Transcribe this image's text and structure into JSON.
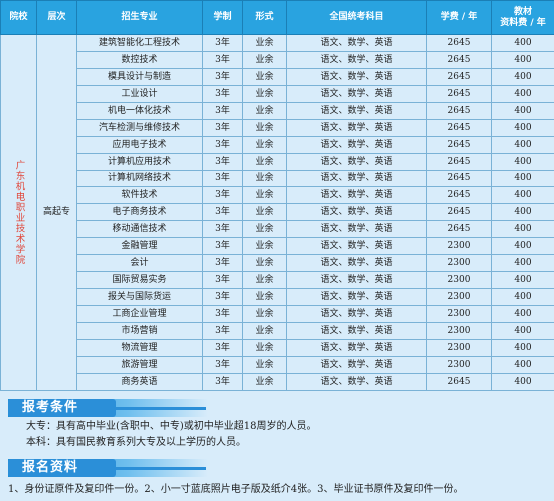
{
  "headers": {
    "school": "院校",
    "level": "层次",
    "major": "招生专业",
    "duration": "学制",
    "mode": "形式",
    "subjects": "全国统考科目",
    "tuition": "学费 / 年",
    "material_line1": "教材",
    "material_line2": "资料费 / 年"
  },
  "school": "广东机电职业技术学院",
  "level": "高起专",
  "rows": [
    {
      "major": "建筑智能化工程技术",
      "duration": "3年",
      "mode": "业余",
      "subjects": "语文、数学、英语",
      "tuition": "2645",
      "material": "400"
    },
    {
      "major": "数控技术",
      "duration": "3年",
      "mode": "业余",
      "subjects": "语文、数学、英语",
      "tuition": "2645",
      "material": "400"
    },
    {
      "major": "模具设计与制造",
      "duration": "3年",
      "mode": "业余",
      "subjects": "语文、数学、英语",
      "tuition": "2645",
      "material": "400"
    },
    {
      "major": "工业设计",
      "duration": "3年",
      "mode": "业余",
      "subjects": "语文、数学、英语",
      "tuition": "2645",
      "material": "400"
    },
    {
      "major": "机电一体化技术",
      "duration": "3年",
      "mode": "业余",
      "subjects": "语文、数学、英语",
      "tuition": "2645",
      "material": "400"
    },
    {
      "major": "汽车检测与维修技术",
      "duration": "3年",
      "mode": "业余",
      "subjects": "语文、数学、英语",
      "tuition": "2645",
      "material": "400"
    },
    {
      "major": "应用电子技术",
      "duration": "3年",
      "mode": "业余",
      "subjects": "语文、数学、英语",
      "tuition": "2645",
      "material": "400"
    },
    {
      "major": "计算机应用技术",
      "duration": "3年",
      "mode": "业余",
      "subjects": "语文、数学、英语",
      "tuition": "2645",
      "material": "400"
    },
    {
      "major": "计算机网络技术",
      "duration": "3年",
      "mode": "业余",
      "subjects": "语文、数学、英语",
      "tuition": "2645",
      "material": "400"
    },
    {
      "major": "软件技术",
      "duration": "3年",
      "mode": "业余",
      "subjects": "语文、数学、英语",
      "tuition": "2645",
      "material": "400"
    },
    {
      "major": "电子商务技术",
      "duration": "3年",
      "mode": "业余",
      "subjects": "语文、数学、英语",
      "tuition": "2645",
      "material": "400"
    },
    {
      "major": "移动通信技术",
      "duration": "3年",
      "mode": "业余",
      "subjects": "语文、数学、英语",
      "tuition": "2645",
      "material": "400"
    },
    {
      "major": "金融管理",
      "duration": "3年",
      "mode": "业余",
      "subjects": "语文、数学、英语",
      "tuition": "2300",
      "material": "400"
    },
    {
      "major": "会计",
      "duration": "3年",
      "mode": "业余",
      "subjects": "语文、数学、英语",
      "tuition": "2300",
      "material": "400"
    },
    {
      "major": "国际贸易实务",
      "duration": "3年",
      "mode": "业余",
      "subjects": "语文、数学、英语",
      "tuition": "2300",
      "material": "400"
    },
    {
      "major": "报关与国际货运",
      "duration": "3年",
      "mode": "业余",
      "subjects": "语文、数学、英语",
      "tuition": "2300",
      "material": "400"
    },
    {
      "major": "工商企业管理",
      "duration": "3年",
      "mode": "业余",
      "subjects": "语文、数学、英语",
      "tuition": "2300",
      "material": "400"
    },
    {
      "major": "市场营销",
      "duration": "3年",
      "mode": "业余",
      "subjects": "语文、数学、英语",
      "tuition": "2300",
      "material": "400"
    },
    {
      "major": "物流管理",
      "duration": "3年",
      "mode": "业余",
      "subjects": "语文、数学、英语",
      "tuition": "2300",
      "material": "400"
    },
    {
      "major": "旅游管理",
      "duration": "3年",
      "mode": "业余",
      "subjects": "语文、数学、英语",
      "tuition": "2300",
      "material": "400"
    },
    {
      "major": "商务英语",
      "duration": "3年",
      "mode": "业余",
      "subjects": "语文、数学、英语",
      "tuition": "2645",
      "material": "400"
    }
  ],
  "requirements": {
    "title": "报考条件",
    "line1": "大专：具有高中毕业(含职中、中专)或初中毕业超18周岁的人员。",
    "line2": "本科：具有国民教育系列大专及以上学历的人员。"
  },
  "documents": {
    "title": "报名资料",
    "line1": "1、身份证原件及复印件一份。2、小一寸蓝底照片电子版及纸介4张。3、毕业证书原件及复印件一份。"
  },
  "colors": {
    "header_bg": "#29a3e0",
    "page_bg": "#d8ecfa",
    "school_text": "#e0463a",
    "section_bar": "#2b8fd8"
  }
}
